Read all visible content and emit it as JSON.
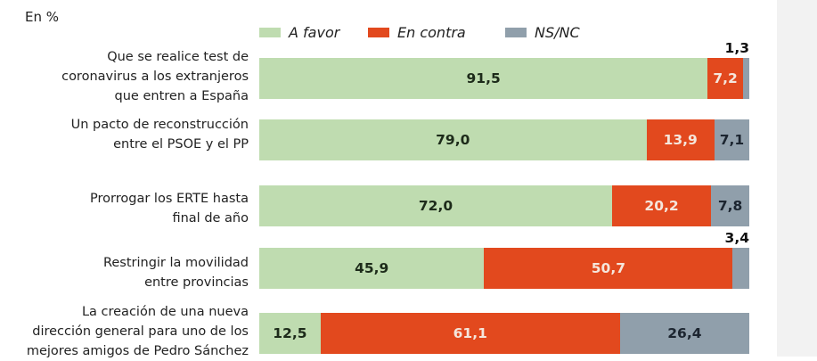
{
  "chart_data": {
    "type": "bar",
    "orientation": "horizontal",
    "stacked": true,
    "unit_label": "En %",
    "xlim": [
      0,
      100
    ],
    "legend": {
      "placement": "top",
      "entries": [
        "A favor",
        "En contra",
        "NS/NC"
      ]
    },
    "colors": {
      "A favor": "#bfdcb0",
      "En contra": "#e2491e",
      "NS/NC": "#909fab"
    },
    "label_colors": {
      "A favor": "#1d2b1a",
      "En contra": "#f5e6dc",
      "NS/NC": "#1c2530"
    },
    "categories": [
      "Que se realice test de coronavirus a los extranjeros que entren a España",
      "Un pacto de reconstrucción entre el PSOE y el PP",
      "Prorrogar los ERTE hasta final de año",
      "Restringir la movilidad entre provincias",
      "La creación de una nueva dirección general para uno de los mejores amigos de Pedro Sánchez"
    ],
    "category_lines": [
      [
        "Que se realice test de",
        "coronavirus a los extranjeros",
        "que entren a España"
      ],
      [
        "Un pacto de reconstrucción",
        "entre el PSOE y el PP"
      ],
      [
        "Prorrogar los ERTE hasta",
        "final de año"
      ],
      [
        "Restringir la movilidad",
        "entre provincias"
      ],
      [
        "La creación de una nueva",
        "dirección general para uno de los",
        "mejores amigos de Pedro Sánchez"
      ]
    ],
    "series": [
      {
        "name": "A favor",
        "values": [
          91.5,
          79.0,
          72.0,
          45.9,
          12.5
        ],
        "labels": [
          "91,5",
          "79,0",
          "72,0",
          "45,9",
          "12,5"
        ]
      },
      {
        "name": "En contra",
        "values": [
          7.2,
          13.9,
          20.2,
          50.7,
          61.1
        ],
        "labels": [
          "7,2",
          "13,9",
          "20,2",
          "50,7",
          "61,1"
        ]
      },
      {
        "name": "NS/NC",
        "values": [
          1.3,
          7.1,
          7.8,
          3.4,
          26.4
        ],
        "labels": [
          "1,3",
          "7,1",
          "7,8",
          "3,4",
          "26,4"
        ]
      }
    ]
  }
}
